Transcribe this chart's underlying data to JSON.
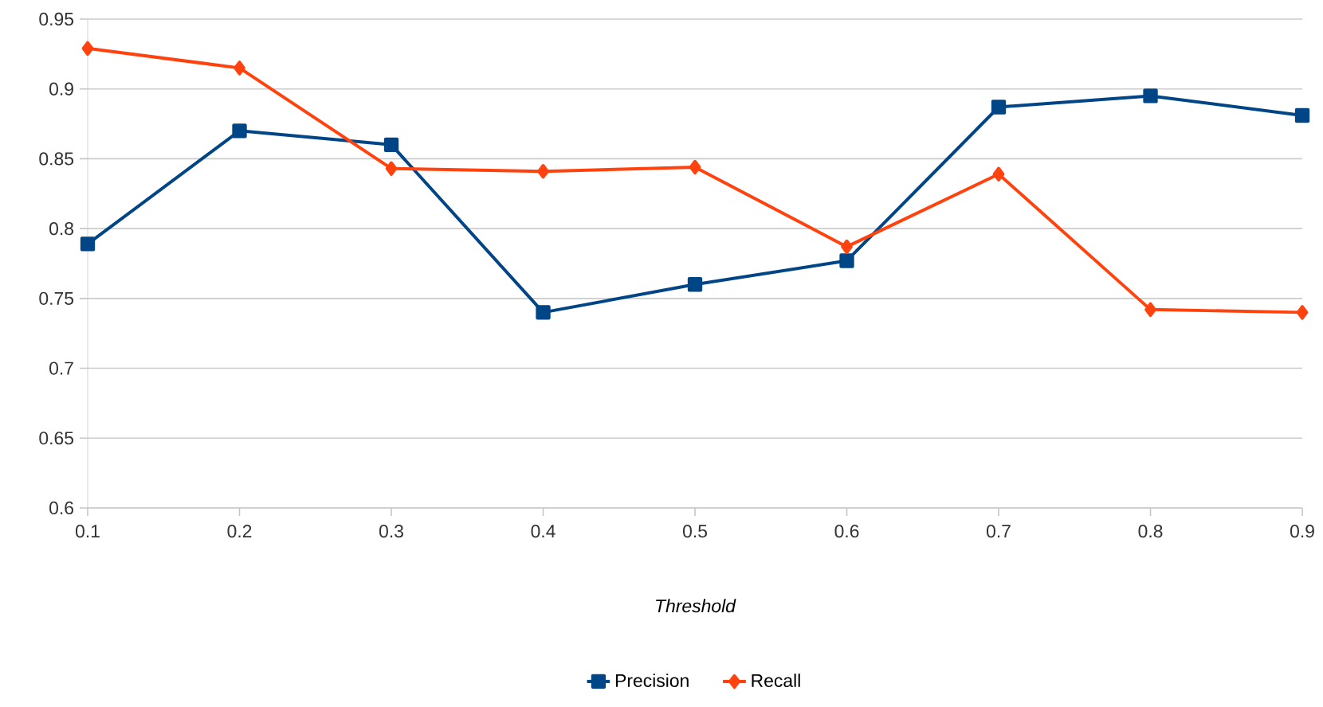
{
  "chart_data": {
    "type": "line",
    "xlabel": "Threshold",
    "x": [
      0.1,
      0.2,
      0.3,
      0.4,
      0.5,
      0.6,
      0.7,
      0.8,
      0.9
    ],
    "series": [
      {
        "name": "Precision",
        "color": "#004586",
        "marker": "square",
        "values": [
          0.789,
          0.87,
          0.86,
          0.74,
          0.76,
          0.777,
          0.887,
          0.895,
          0.881
        ]
      },
      {
        "name": "Recall",
        "color": "#ff420e",
        "marker": "diamond",
        "values": [
          0.929,
          0.915,
          0.843,
          0.841,
          0.844,
          0.787,
          0.839,
          0.742,
          0.74
        ]
      }
    ],
    "xlim": [
      0.1,
      0.9
    ],
    "ylim": [
      0.6,
      0.95
    ],
    "xticks": [
      0.1,
      0.2,
      0.3,
      0.4,
      0.5,
      0.6,
      0.7,
      0.8,
      0.9
    ],
    "yticks": [
      0.6,
      0.65,
      0.7,
      0.75,
      0.8,
      0.85,
      0.9,
      0.95
    ],
    "grid": "y",
    "legend": "bottom",
    "line_style": "solid"
  }
}
